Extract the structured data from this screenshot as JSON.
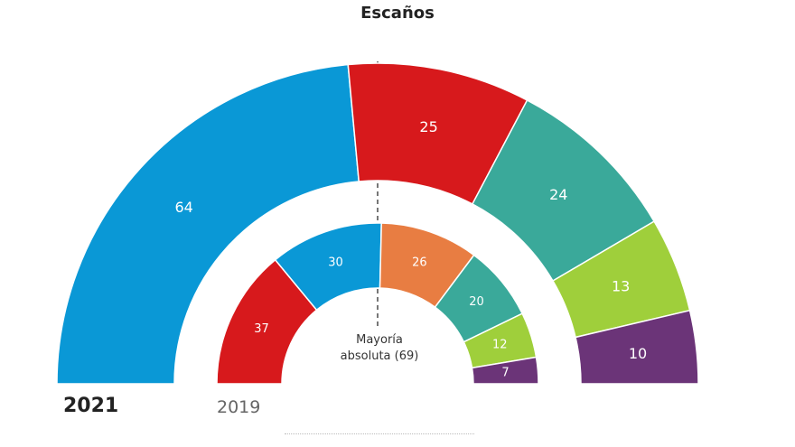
{
  "chart_data": [
    {
      "type": "pie",
      "subtype": "semicircle-parliament",
      "title": "Escaños",
      "label": "2021",
      "values": [
        64,
        25,
        24,
        13,
        10
      ],
      "colors": [
        "#0A98D6",
        "#D7191C",
        "#3AA99A",
        "#9FCF3B",
        "#6B3478"
      ]
    },
    {
      "type": "pie",
      "subtype": "semicircle-parliament",
      "label": "2019",
      "values": [
        37,
        30,
        26,
        20,
        12,
        7
      ],
      "colors": [
        "#D7191C",
        "#0A98D6",
        "#E87D42",
        "#3AA99A",
        "#9FCF3B",
        "#6B3478"
      ]
    }
  ],
  "annotations": {
    "majority_line1": "Mayoría",
    "majority_line2": "absoluta (69)"
  }
}
